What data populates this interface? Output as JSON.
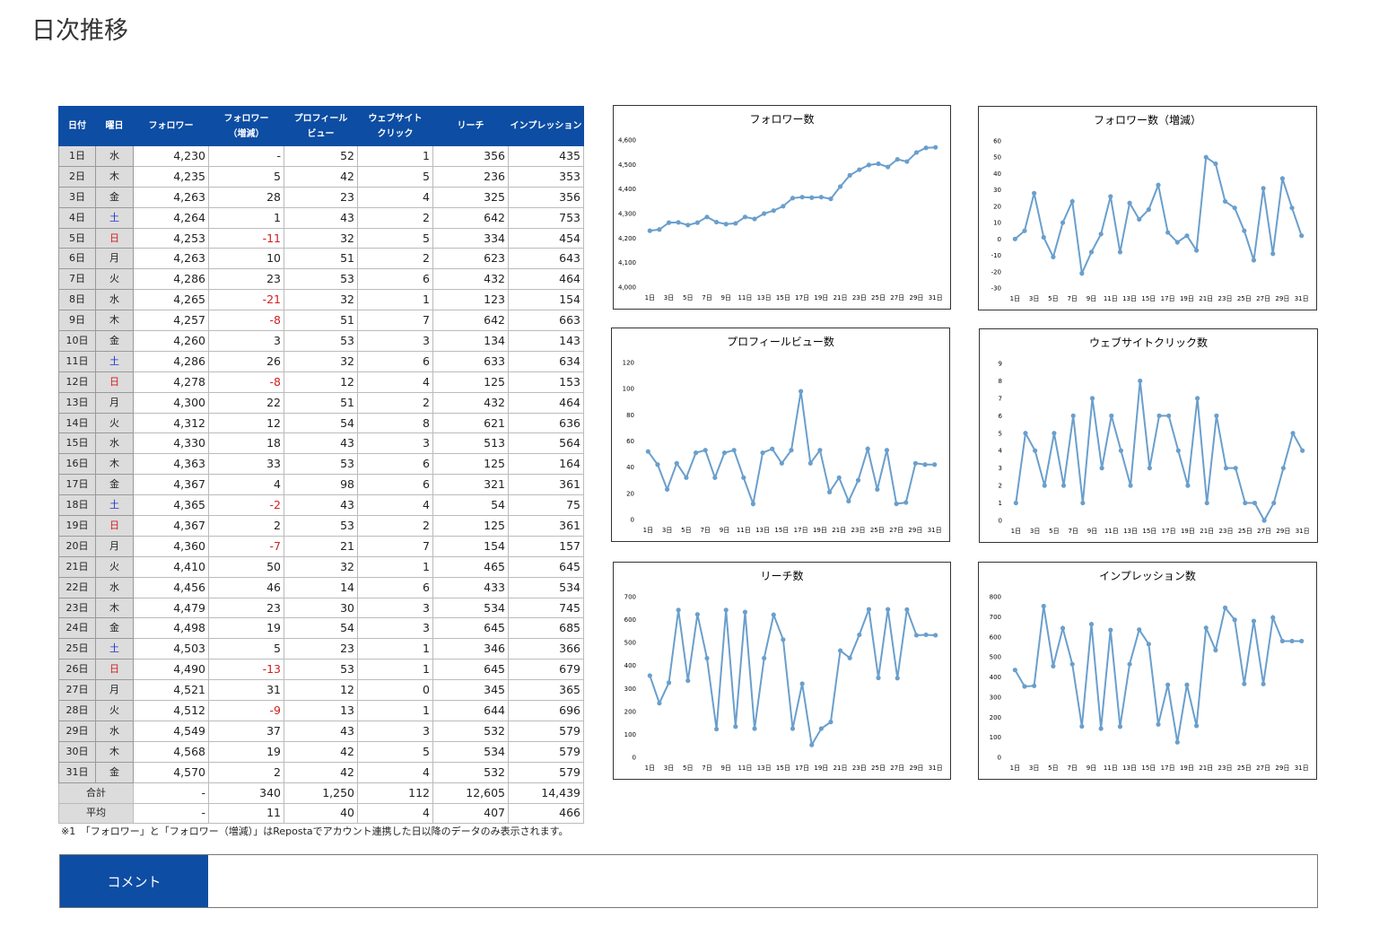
{
  "title": "日次推移",
  "table": {
    "headers": [
      "日付",
      "曜日",
      "フォロワー",
      "フォロワー\n（増減）",
      "プロフィール\nビュー",
      "ウェブサイト\nクリック",
      "リーチ",
      "インプレッション"
    ],
    "weekday_colors": {
      "土": "#1f2fd0",
      "日": "#d01f1f"
    },
    "negative_color": "#d01f1f",
    "rows": [
      [
        "1日",
        "水",
        "4,230",
        "-",
        "52",
        "1",
        "356",
        "435"
      ],
      [
        "2日",
        "木",
        "4,235",
        "5",
        "42",
        "5",
        "236",
        "353"
      ],
      [
        "3日",
        "金",
        "4,263",
        "28",
        "23",
        "4",
        "325",
        "356"
      ],
      [
        "4日",
        "土",
        "4,264",
        "1",
        "43",
        "2",
        "642",
        "753"
      ],
      [
        "5日",
        "日",
        "4,253",
        "-11",
        "32",
        "5",
        "334",
        "454"
      ],
      [
        "6日",
        "月",
        "4,263",
        "10",
        "51",
        "2",
        "623",
        "643"
      ],
      [
        "7日",
        "火",
        "4,286",
        "23",
        "53",
        "6",
        "432",
        "464"
      ],
      [
        "8日",
        "水",
        "4,265",
        "-21",
        "32",
        "1",
        "123",
        "154"
      ],
      [
        "9日",
        "木",
        "4,257",
        "-8",
        "51",
        "7",
        "642",
        "663"
      ],
      [
        "10日",
        "金",
        "4,260",
        "3",
        "53",
        "3",
        "134",
        "143"
      ],
      [
        "11日",
        "土",
        "4,286",
        "26",
        "32",
        "6",
        "633",
        "634"
      ],
      [
        "12日",
        "日",
        "4,278",
        "-8",
        "12",
        "4",
        "125",
        "153"
      ],
      [
        "13日",
        "月",
        "4,300",
        "22",
        "51",
        "2",
        "432",
        "464"
      ],
      [
        "14日",
        "火",
        "4,312",
        "12",
        "54",
        "8",
        "621",
        "636"
      ],
      [
        "15日",
        "水",
        "4,330",
        "18",
        "43",
        "3",
        "513",
        "564"
      ],
      [
        "16日",
        "木",
        "4,363",
        "33",
        "53",
        "6",
        "125",
        "164"
      ],
      [
        "17日",
        "金",
        "4,367",
        "4",
        "98",
        "6",
        "321",
        "361"
      ],
      [
        "18日",
        "土",
        "4,365",
        "-2",
        "43",
        "4",
        "54",
        "75"
      ],
      [
        "19日",
        "日",
        "4,367",
        "2",
        "53",
        "2",
        "125",
        "361"
      ],
      [
        "20日",
        "月",
        "4,360",
        "-7",
        "21",
        "7",
        "154",
        "157"
      ],
      [
        "21日",
        "火",
        "4,410",
        "50",
        "32",
        "1",
        "465",
        "645"
      ],
      [
        "22日",
        "水",
        "4,456",
        "46",
        "14",
        "6",
        "433",
        "534"
      ],
      [
        "23日",
        "木",
        "4,479",
        "23",
        "30",
        "3",
        "534",
        "745"
      ],
      [
        "24日",
        "金",
        "4,498",
        "19",
        "54",
        "3",
        "645",
        "685"
      ],
      [
        "25日",
        "土",
        "4,503",
        "5",
        "23",
        "1",
        "346",
        "366"
      ],
      [
        "26日",
        "日",
        "4,490",
        "-13",
        "53",
        "1",
        "645",
        "679"
      ],
      [
        "27日",
        "月",
        "4,521",
        "31",
        "12",
        "0",
        "345",
        "365"
      ],
      [
        "28日",
        "火",
        "4,512",
        "-9",
        "13",
        "1",
        "644",
        "696"
      ],
      [
        "29日",
        "水",
        "4,549",
        "37",
        "43",
        "3",
        "532",
        "579"
      ],
      [
        "30日",
        "木",
        "4,568",
        "19",
        "42",
        "5",
        "534",
        "579"
      ],
      [
        "31日",
        "金",
        "4,570",
        "2",
        "42",
        "4",
        "532",
        "579"
      ]
    ],
    "footer_rows": [
      {
        "label": "合計",
        "cells": [
          "-",
          "340",
          "1,250",
          "112",
          "12,605",
          "14,439"
        ]
      },
      {
        "label": "平均",
        "cells": [
          "-",
          "11",
          "40",
          "4",
          "407",
          "466"
        ]
      }
    ]
  },
  "note": "※1　「フォロワー」と「フォロワー（増減）」はRepostaでアカウント連携した日以降のデータのみ表示されます。",
  "comment_label": "コメント",
  "chart_data": [
    {
      "type": "line",
      "title": "フォロワー数",
      "color": "#6a9fcc",
      "grid": false,
      "categories": [
        "1日",
        null,
        "3日",
        null,
        "5日",
        null,
        "7日",
        null,
        "9日",
        null,
        "11日",
        null,
        "13日",
        null,
        "15日",
        null,
        "17日",
        null,
        "19日",
        null,
        "21日",
        null,
        "23日",
        null,
        "25日",
        null,
        "27日",
        null,
        "29日",
        null,
        "31日"
      ],
      "values": [
        4230,
        4235,
        4263,
        4264,
        4253,
        4263,
        4286,
        4265,
        4257,
        4260,
        4286,
        4278,
        4300,
        4312,
        4330,
        4363,
        4367,
        4365,
        4367,
        4360,
        4410,
        4456,
        4479,
        4498,
        4503,
        4490,
        4521,
        4512,
        4549,
        4568,
        4570
      ],
      "ylim": [
        4000,
        4600
      ],
      "yticks": [
        {
          "value": 4000,
          "label": "4,000"
        },
        {
          "value": 4100,
          "label": "4,100"
        },
        {
          "value": 4200,
          "label": "4,200"
        },
        {
          "value": 4300,
          "label": "4,300"
        },
        {
          "value": 4400,
          "label": "4,400"
        },
        {
          "value": 4500,
          "label": "4,500"
        },
        {
          "value": 4600,
          "label": "4,600"
        }
      ]
    },
    {
      "type": "line",
      "title": "フォロワー数（増減）",
      "color": "#6a9fcc",
      "grid": false,
      "categories": [
        "1日",
        null,
        "3日",
        null,
        "5日",
        null,
        "7日",
        null,
        "9日",
        null,
        "11日",
        null,
        "13日",
        null,
        "15日",
        null,
        "17日",
        null,
        "19日",
        null,
        "21日",
        null,
        "23日",
        null,
        "25日",
        null,
        "27日",
        null,
        "29日",
        null,
        "31日"
      ],
      "values": [
        0,
        5,
        28,
        1,
        -11,
        10,
        23,
        -21,
        -8,
        3,
        26,
        -8,
        22,
        12,
        18,
        33,
        4,
        -2,
        2,
        -7,
        50,
        46,
        23,
        19,
        5,
        -13,
        31,
        -9,
        37,
        19,
        2
      ],
      "ylim": [
        -30,
        60
      ],
      "yticks": [
        -30,
        -20,
        -10,
        0,
        10,
        20,
        30,
        40,
        50,
        60
      ]
    },
    {
      "type": "line",
      "title": "プロフィールビュー数",
      "color": "#6a9fcc",
      "grid": false,
      "categories": [
        "1日",
        null,
        "3日",
        null,
        "5日",
        null,
        "7日",
        null,
        "9日",
        null,
        "11日",
        null,
        "13日",
        null,
        "15日",
        null,
        "17日",
        null,
        "19日",
        null,
        "21日",
        null,
        "23日",
        null,
        "25日",
        null,
        "27日",
        null,
        "29日",
        null,
        "31日"
      ],
      "values": [
        52,
        42,
        23,
        43,
        32,
        51,
        53,
        32,
        51,
        53,
        32,
        12,
        51,
        54,
        43,
        53,
        98,
        43,
        53,
        21,
        32,
        14,
        30,
        54,
        23,
        53,
        12,
        13,
        43,
        42,
        42
      ],
      "ylim": [
        0,
        120
      ],
      "yticks": [
        0,
        20,
        40,
        60,
        80,
        100,
        120
      ]
    },
    {
      "type": "line",
      "title": "ウェブサイトクリック数",
      "color": "#6a9fcc",
      "grid": false,
      "categories": [
        "1日",
        null,
        "3日",
        null,
        "5日",
        null,
        "7日",
        null,
        "9日",
        null,
        "11日",
        null,
        "13日",
        null,
        "15日",
        null,
        "17日",
        null,
        "19日",
        null,
        "21日",
        null,
        "23日",
        null,
        "25日",
        null,
        "27日",
        null,
        "29日",
        null,
        "31日"
      ],
      "values": [
        1,
        5,
        4,
        2,
        5,
        2,
        6,
        1,
        7,
        3,
        6,
        4,
        2,
        8,
        3,
        6,
        6,
        4,
        2,
        7,
        1,
        6,
        3,
        3,
        1,
        1,
        0,
        1,
        3,
        5,
        4
      ],
      "ylim": [
        0,
        9
      ],
      "yticks": [
        0,
        1,
        2,
        3,
        4,
        5,
        6,
        7,
        8,
        9
      ]
    },
    {
      "type": "line",
      "title": "リーチ数",
      "color": "#6a9fcc",
      "grid": false,
      "categories": [
        "1日",
        null,
        "3日",
        null,
        "5日",
        null,
        "7日",
        null,
        "9日",
        null,
        "11日",
        null,
        "13日",
        null,
        "15日",
        null,
        "17日",
        null,
        "19日",
        null,
        "21日",
        null,
        "23日",
        null,
        "25日",
        null,
        "27日",
        null,
        "29日",
        null,
        "31日"
      ],
      "values": [
        356,
        236,
        325,
        642,
        334,
        623,
        432,
        123,
        642,
        134,
        633,
        125,
        432,
        621,
        513,
        125,
        321,
        54,
        125,
        154,
        465,
        433,
        534,
        645,
        346,
        645,
        345,
        644,
        532,
        534,
        532
      ],
      "ylim": [
        0,
        700
      ],
      "yticks": [
        0,
        100,
        200,
        300,
        400,
        500,
        600,
        700
      ]
    },
    {
      "type": "line",
      "title": "インプレッション数",
      "color": "#6a9fcc",
      "grid": false,
      "categories": [
        "1日",
        null,
        "3日",
        null,
        "5日",
        null,
        "7日",
        null,
        "9日",
        null,
        "11日",
        null,
        "13日",
        null,
        "15日",
        null,
        "17日",
        null,
        "19日",
        null,
        "21日",
        null,
        "23日",
        null,
        "25日",
        null,
        "27日",
        null,
        "29日",
        null,
        "31日"
      ],
      "values": [
        435,
        353,
        356,
        753,
        454,
        643,
        464,
        154,
        663,
        143,
        634,
        153,
        464,
        636,
        564,
        164,
        361,
        75,
        361,
        157,
        645,
        534,
        745,
        685,
        366,
        679,
        365,
        696,
        579,
        579,
        579
      ],
      "ylim": [
        0,
        800
      ],
      "yticks": [
        0,
        100,
        200,
        300,
        400,
        500,
        600,
        700,
        800
      ]
    }
  ]
}
